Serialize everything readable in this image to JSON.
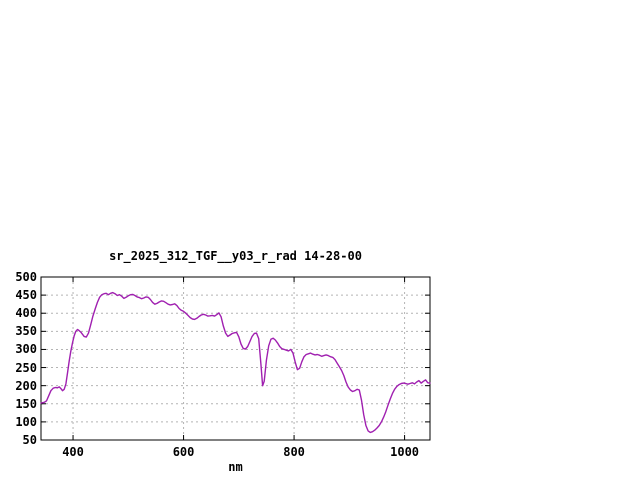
{
  "window": {
    "background": "#ffffff"
  },
  "chart_data": {
    "type": "line",
    "title": "sr_2025_312_TGF__y03_r_rad 14-28-00",
    "xlabel": "nm",
    "ylabel": "",
    "xlim": [
      342,
      1046
    ],
    "ylim": [
      50,
      500
    ],
    "xticks": [
      400,
      600,
      800,
      1000
    ],
    "yticks": [
      50,
      100,
      150,
      200,
      250,
      300,
      350,
      400,
      450,
      500
    ],
    "grid": true,
    "grid_style": "dashed",
    "legend": "none",
    "line_color": "#a020b0",
    "grid_color": "#b4b4b4",
    "axis_color": "#000000",
    "series": [
      {
        "name": "sr_2025_312_TGF__y03_r_rad 14-28-00",
        "points": [
          [
            342,
            152
          ],
          [
            348,
            154
          ],
          [
            352,
            158
          ],
          [
            356,
            172
          ],
          [
            360,
            186
          ],
          [
            364,
            193
          ],
          [
            368,
            195
          ],
          [
            372,
            194
          ],
          [
            375,
            197
          ],
          [
            378,
            192
          ],
          [
            381,
            186
          ],
          [
            384,
            190
          ],
          [
            387,
            205
          ],
          [
            390,
            235
          ],
          [
            393,
            268
          ],
          [
            396,
            295
          ],
          [
            399,
            318
          ],
          [
            402,
            338
          ],
          [
            405,
            350
          ],
          [
            408,
            355
          ],
          [
            411,
            352
          ],
          [
            414,
            348
          ],
          [
            417,
            342
          ],
          [
            420,
            336
          ],
          [
            424,
            334
          ],
          [
            428,
            345
          ],
          [
            432,
            368
          ],
          [
            436,
            392
          ],
          [
            440,
            412
          ],
          [
            444,
            430
          ],
          [
            448,
            444
          ],
          [
            452,
            451
          ],
          [
            456,
            454
          ],
          [
            460,
            455
          ],
          [
            464,
            451
          ],
          [
            468,
            455
          ],
          [
            472,
            457
          ],
          [
            476,
            454
          ],
          [
            480,
            449
          ],
          [
            484,
            451
          ],
          [
            488,
            447
          ],
          [
            492,
            441
          ],
          [
            496,
            444
          ],
          [
            500,
            448
          ],
          [
            504,
            451
          ],
          [
            508,
            452
          ],
          [
            512,
            449
          ],
          [
            516,
            445
          ],
          [
            520,
            443
          ],
          [
            524,
            440
          ],
          [
            528,
            442
          ],
          [
            532,
            445
          ],
          [
            536,
            444
          ],
          [
            540,
            438
          ],
          [
            544,
            430
          ],
          [
            548,
            425
          ],
          [
            552,
            427
          ],
          [
            556,
            431
          ],
          [
            560,
            434
          ],
          [
            564,
            433
          ],
          [
            568,
            429
          ],
          [
            572,
            425
          ],
          [
            576,
            423
          ],
          [
            580,
            424
          ],
          [
            584,
            426
          ],
          [
            588,
            421
          ],
          [
            592,
            413
          ],
          [
            596,
            408
          ],
          [
            600,
            405
          ],
          [
            604,
            400
          ],
          [
            608,
            394
          ],
          [
            612,
            388
          ],
          [
            616,
            384
          ],
          [
            620,
            383
          ],
          [
            624,
            386
          ],
          [
            628,
            391
          ],
          [
            632,
            395
          ],
          [
            636,
            397
          ],
          [
            640,
            395
          ],
          [
            644,
            392
          ],
          [
            648,
            393
          ],
          [
            652,
            394
          ],
          [
            656,
            392
          ],
          [
            660,
            396
          ],
          [
            664,
            401
          ],
          [
            668,
            390
          ],
          [
            672,
            365
          ],
          [
            676,
            345
          ],
          [
            680,
            336
          ],
          [
            684,
            340
          ],
          [
            688,
            344
          ],
          [
            692,
            346
          ],
          [
            696,
            347
          ],
          [
            700,
            335
          ],
          [
            704,
            315
          ],
          [
            708,
            303
          ],
          [
            712,
            301
          ],
          [
            716,
            308
          ],
          [
            720,
            322
          ],
          [
            724,
            336
          ],
          [
            728,
            344
          ],
          [
            732,
            345
          ],
          [
            736,
            330
          ],
          [
            740,
            260
          ],
          [
            743,
            200
          ],
          [
            746,
            212
          ],
          [
            750,
            270
          ],
          [
            754,
            310
          ],
          [
            758,
            328
          ],
          [
            762,
            331
          ],
          [
            766,
            326
          ],
          [
            770,
            318
          ],
          [
            774,
            308
          ],
          [
            778,
            302
          ],
          [
            782,
            300
          ],
          [
            786,
            298
          ],
          [
            790,
            296
          ],
          [
            794,
            300
          ],
          [
            798,
            290
          ],
          [
            802,
            265
          ],
          [
            806,
            244
          ],
          [
            810,
            248
          ],
          [
            814,
            266
          ],
          [
            818,
            280
          ],
          [
            822,
            286
          ],
          [
            826,
            288
          ],
          [
            830,
            290
          ],
          [
            834,
            287
          ],
          [
            838,
            285
          ],
          [
            842,
            286
          ],
          [
            846,
            284
          ],
          [
            850,
            281
          ],
          [
            854,
            283
          ],
          [
            858,
            285
          ],
          [
            862,
            283
          ],
          [
            866,
            280
          ],
          [
            870,
            278
          ],
          [
            874,
            272
          ],
          [
            878,
            262
          ],
          [
            882,
            252
          ],
          [
            886,
            242
          ],
          [
            890,
            228
          ],
          [
            894,
            210
          ],
          [
            898,
            196
          ],
          [
            902,
            188
          ],
          [
            906,
            184
          ],
          [
            910,
            186
          ],
          [
            914,
            190
          ],
          [
            918,
            188
          ],
          [
            922,
            160
          ],
          [
            926,
            120
          ],
          [
            930,
            90
          ],
          [
            934,
            75
          ],
          [
            938,
            71
          ],
          [
            942,
            73
          ],
          [
            946,
            77
          ],
          [
            950,
            83
          ],
          [
            954,
            90
          ],
          [
            958,
            100
          ],
          [
            962,
            113
          ],
          [
            966,
            128
          ],
          [
            970,
            146
          ],
          [
            974,
            163
          ],
          [
            978,
            178
          ],
          [
            982,
            190
          ],
          [
            986,
            198
          ],
          [
            990,
            203
          ],
          [
            994,
            206
          ],
          [
            998,
            207
          ],
          [
            1002,
            206
          ],
          [
            1006,
            204
          ],
          [
            1010,
            206
          ],
          [
            1014,
            208
          ],
          [
            1018,
            205
          ],
          [
            1022,
            210
          ],
          [
            1026,
            214
          ],
          [
            1030,
            207
          ],
          [
            1034,
            212
          ],
          [
            1038,
            216
          ],
          [
            1042,
            208
          ],
          [
            1046,
            207
          ]
        ]
      }
    ]
  }
}
